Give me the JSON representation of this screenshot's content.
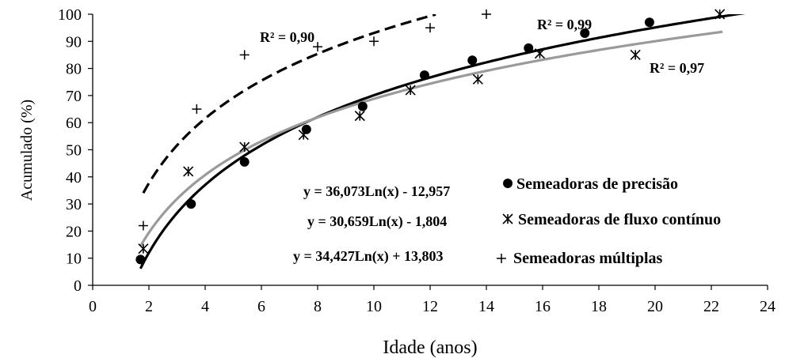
{
  "chart_data": {
    "type": "scatter",
    "xlabel": "Idade (anos)",
    "ylabel": "Acumulado (%)",
    "xlim": [
      0,
      24
    ],
    "ylim": [
      0,
      100
    ],
    "xticks": [
      "0",
      "2",
      "4",
      "6",
      "8",
      "10",
      "12",
      "14",
      "16",
      "18",
      "20",
      "22",
      "24"
    ],
    "yticks": [
      "0",
      "10",
      "20",
      "30",
      "40",
      "50",
      "60",
      "70",
      "80",
      "90",
      "100"
    ],
    "grid": false,
    "series": [
      {
        "name": "Semeadoras de precisão",
        "marker": "circle",
        "color": "#000000",
        "points": [
          [
            1.7,
            9.5
          ],
          [
            3.5,
            30
          ],
          [
            5.4,
            45.5
          ],
          [
            7.6,
            57.5
          ],
          [
            9.6,
            66
          ],
          [
            11.8,
            77.5
          ],
          [
            13.5,
            83
          ],
          [
            15.5,
            87.5
          ],
          [
            17.5,
            93
          ],
          [
            19.8,
            97
          ]
        ],
        "fit": {
          "a": 36.073,
          "b": -12.957,
          "style": "solid-black",
          "x_range": [
            1.7,
            23.5
          ]
        },
        "equation": "y = 36,073Ln(x) - 12,957",
        "r2": "R² = 0,99"
      },
      {
        "name": "Semeadoras de fluxo contínuo",
        "marker": "asterisk",
        "color": "#000000",
        "points": [
          [
            1.8,
            13.5
          ],
          [
            3.4,
            42
          ],
          [
            5.4,
            51
          ],
          [
            7.5,
            55.5
          ],
          [
            9.5,
            62.5
          ],
          [
            11.3,
            72
          ],
          [
            13.7,
            76
          ],
          [
            15.9,
            85.5
          ],
          [
            19.3,
            85
          ],
          [
            22.3,
            100
          ]
        ],
        "fit": {
          "a": 30.659,
          "b": -1.804,
          "style": "solid-gray",
          "x_range": [
            1.7,
            22.4
          ]
        },
        "equation": "y = 30,659Ln(x) - 1,804",
        "r2": "R² = 0,97"
      },
      {
        "name": "Semeadoras múltiplas",
        "marker": "plus",
        "color": "#000000",
        "points": [
          [
            1.8,
            22
          ],
          [
            3.7,
            65
          ],
          [
            5.4,
            85
          ],
          [
            8,
            88
          ],
          [
            10,
            90
          ],
          [
            12,
            95
          ],
          [
            14,
            100
          ]
        ],
        "fit": {
          "a": 34.427,
          "b": 13.803,
          "style": "dashed-black",
          "x_range": [
            1.8,
            12.2
          ]
        },
        "equation": "y = 34,427Ln(x) + 13,803",
        "r2": "R² = 0,90"
      }
    ]
  }
}
